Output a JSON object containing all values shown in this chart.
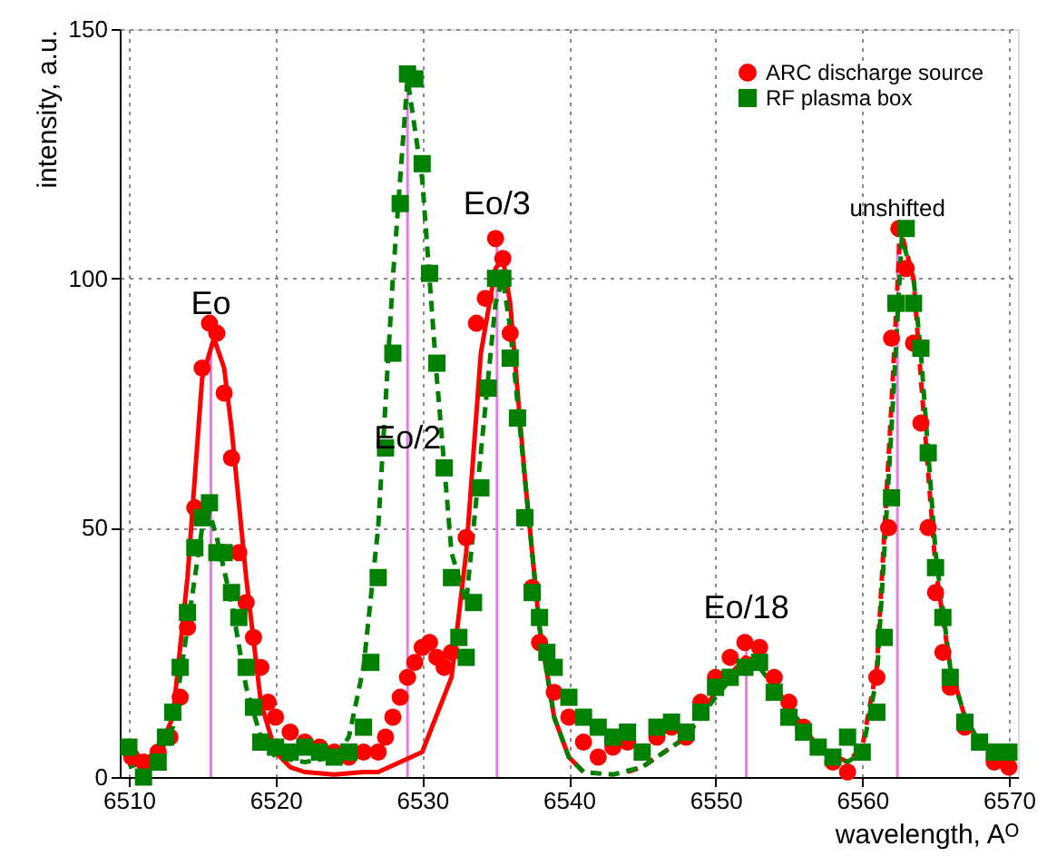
{
  "chart_data": {
    "type": "scatter",
    "xlabel": "wavelength, Aᴼ",
    "ylabel": "intensity, a.u.",
    "xlim": [
      6510,
      6570
    ],
    "xticks": [
      6510,
      6520,
      6530,
      6540,
      6550,
      6560,
      6570
    ],
    "ylim": [
      0,
      150
    ],
    "yticks": [
      0,
      50,
      100,
      150
    ],
    "grid": true,
    "legend": "top right",
    "series": [
      {
        "type": "bar",
        "color": "#e67ee6",
        "x": [
          6515.6,
          6529.0,
          6535.1,
          6552.1,
          6562.4
        ],
        "values": [
          87,
          138,
          107,
          26,
          107
        ]
      },
      {
        "type": "line",
        "color": "#ff0000",
        "line_style": "solid",
        "marker": "none",
        "x": [
          6510,
          6512,
          6513,
          6514,
          6515,
          6515.8,
          6516.5,
          6517,
          6518,
          6519,
          6520,
          6521,
          6522,
          6524,
          6526,
          6527,
          6530,
          6532,
          6533,
          6534,
          6535,
          6535.5,
          6536,
          6537,
          6538,
          6539,
          6540,
          6541
        ],
        "values": [
          2,
          5,
          12,
          40,
          80,
          88,
          82,
          70,
          40,
          15,
          5,
          2,
          1,
          0.5,
          1,
          1,
          5,
          20,
          45,
          85,
          102,
          104,
          95,
          60,
          30,
          12,
          4,
          1
        ]
      },
      {
        "type": "line",
        "color": "#ff0000",
        "line_style": "dashed",
        "marker": "none",
        "x": [
          6544,
          6545,
          6548,
          6550,
          6552,
          6553,
          6555,
          6557,
          6559,
          6560,
          6561,
          6562,
          6562.6,
          6563.5,
          6564,
          6565,
          6566,
          6567,
          6568,
          6570
        ],
        "values": [
          1,
          2,
          8,
          17,
          24,
          23,
          14,
          6,
          3,
          6,
          22,
          75,
          110,
          100,
          80,
          42,
          22,
          12,
          7,
          4
        ]
      },
      {
        "type": "line",
        "color": "#008000",
        "line_style": "dashed",
        "marker": "none",
        "x": [
          6510,
          6512,
          6513,
          6514,
          6515,
          6515.5,
          6516,
          6517,
          6518,
          6519,
          6520,
          6522,
          6524,
          6525,
          6526,
          6527,
          6528,
          6529,
          6530,
          6531,
          6532,
          6533,
          6534,
          6535,
          6535.5,
          6536,
          6537,
          6538,
          6539,
          6540,
          6541,
          6543,
          6545,
          6548,
          6550,
          6552,
          6553,
          6555,
          6557,
          6559,
          6560,
          6561,
          6562,
          6562.7,
          6563.5,
          6564,
          6565,
          6566,
          6567,
          6568,
          6570
        ],
        "values": [
          2,
          4,
          10,
          30,
          50,
          53,
          48,
          35,
          18,
          8,
          4,
          3,
          4,
          8,
          22,
          50,
          100,
          140,
          120,
          80,
          45,
          35,
          65,
          95,
          100,
          90,
          60,
          30,
          12,
          4,
          1,
          0.5,
          2,
          8,
          16,
          23,
          22,
          14,
          6,
          3,
          5,
          20,
          70,
          108,
          100,
          85,
          45,
          22,
          12,
          7,
          4
        ]
      },
      {
        "name": "ARC discharge source",
        "color": "#ff0000",
        "marker": "circle",
        "x": [
          6510.2,
          6511,
          6512,
          6512.8,
          6513.5,
          6514,
          6514.5,
          6515,
          6515.5,
          6516,
          6516.5,
          6517,
          6517.5,
          6518,
          6518.5,
          6519,
          6519.5,
          6520,
          6521,
          6522,
          6523,
          6524,
          6525,
          6526,
          6527,
          6527.5,
          6528,
          6528.5,
          6529,
          6529.5,
          6530,
          6530.5,
          6531,
          6531.5,
          6532,
          6533,
          6533.7,
          6534.3,
          6535,
          6535.5,
          6536,
          6537.5,
          6538,
          6539,
          6540,
          6541,
          6542,
          6543,
          6544,
          6546,
          6547,
          6548,
          6549,
          6550,
          6551,
          6552,
          6553,
          6554,
          6555,
          6556,
          6558,
          6559,
          6561,
          6561.8,
          6562,
          6562.5,
          6563,
          6563.5,
          6564,
          6564.5,
          6565,
          6565.5,
          6566,
          6567,
          6569,
          6570
        ],
        "values": [
          4,
          3,
          5,
          8,
          16,
          30,
          54,
          82,
          91,
          89,
          77,
          64,
          45,
          35,
          28,
          22,
          15,
          12,
          9,
          7,
          6,
          5,
          4,
          5,
          5,
          8,
          12,
          16,
          20,
          23,
          26,
          27,
          24,
          22,
          25,
          48,
          91,
          96,
          108,
          104,
          89,
          38,
          27,
          17,
          12,
          7,
          4,
          6,
          7,
          8,
          10,
          8,
          15,
          20,
          24,
          27,
          26,
          20,
          15,
          10,
          3,
          1,
          20,
          50,
          88,
          110,
          102,
          87,
          71,
          50,
          37,
          25,
          18,
          10,
          3,
          2
        ]
      },
      {
        "name": "RF plasma box",
        "color": "#008000",
        "marker": "square",
        "x": [
          6510,
          6511,
          6512,
          6512.5,
          6513,
          6513.5,
          6514,
          6514.5,
          6515,
          6515.5,
          6516,
          6516.5,
          6517,
          6517.5,
          6518,
          6518.5,
          6519,
          6520,
          6521,
          6522,
          6523,
          6524,
          6525,
          6526,
          6526.5,
          6527,
          6527.5,
          6528,
          6528.5,
          6529,
          6529.5,
          6530,
          6530.5,
          6531,
          6531.5,
          6532,
          6532.5,
          6533,
          6533.5,
          6534,
          6534.5,
          6535,
          6535.5,
          6536,
          6536.5,
          6537,
          6537.5,
          6538,
          6538.5,
          6539,
          6540,
          6541,
          6542,
          6543,
          6544,
          6545,
          6546,
          6547,
          6548,
          6549,
          6550,
          6551,
          6552,
          6553,
          6554,
          6555,
          6556,
          6557,
          6558,
          6559,
          6560,
          6561,
          6561.5,
          6562,
          6562.3,
          6563,
          6563.5,
          6564,
          6564.5,
          6565,
          6565.5,
          6566,
          6567,
          6568,
          6569,
          6570
        ],
        "values": [
          6,
          0,
          3,
          8,
          13,
          22,
          33,
          46,
          52,
          55,
          45,
          45,
          37,
          32,
          22,
          14,
          7,
          6,
          5,
          6,
          5,
          4,
          5,
          10,
          23,
          40,
          66,
          85,
          115,
          141,
          140,
          123,
          101,
          83,
          62,
          40,
          28,
          24,
          35,
          58,
          78,
          100,
          100,
          84,
          72,
          52,
          37,
          32,
          25,
          22,
          16,
          12,
          10,
          8,
          9,
          5,
          10,
          11,
          9,
          13,
          18,
          20,
          22,
          23,
          17,
          12,
          9,
          6,
          4,
          8,
          5,
          13,
          28,
          56,
          95,
          110,
          95,
          86,
          65,
          42,
          32,
          20,
          11,
          7,
          5,
          5
        ]
      }
    ],
    "annotations": [
      {
        "text": "Eo",
        "x": 6515.6,
        "y": 87
      },
      {
        "text": "Eo/2",
        "x": 6529.0,
        "y": 60
      },
      {
        "text": "Eo/3",
        "x": 6535.1,
        "y": 107
      },
      {
        "text": "Eo/18",
        "x": 6552.1,
        "y": 26
      },
      {
        "text": "unshifted",
        "x": 6562.4,
        "y": 107
      }
    ]
  }
}
